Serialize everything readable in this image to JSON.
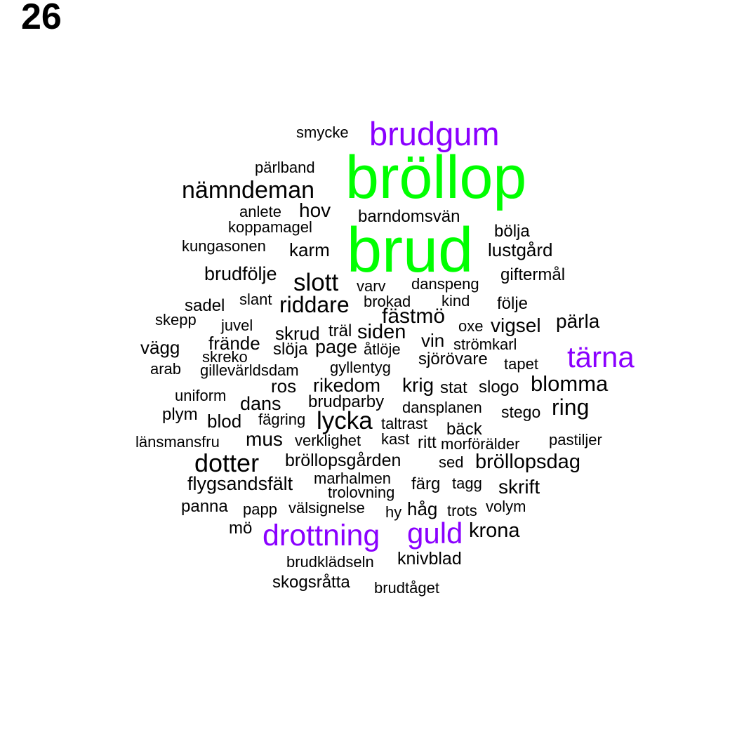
{
  "page_number": "26",
  "colors": {
    "primary": "#00ff00",
    "secondary": "#8a00ff",
    "default": "#000000"
  },
  "words": [
    {
      "text": "bröllop",
      "tier": "main"
    },
    {
      "text": "brud",
      "tier": "main"
    },
    {
      "text": "brudgum",
      "tier": "sub"
    },
    {
      "text": "tärna",
      "tier": "sub"
    },
    {
      "text": "drottning",
      "tier": "sub"
    },
    {
      "text": "guld",
      "tier": "sub"
    },
    {
      "text": "smycke"
    },
    {
      "text": "pärlband"
    },
    {
      "text": "nämndeman"
    },
    {
      "text": "anlete"
    },
    {
      "text": "hov"
    },
    {
      "text": "barndomsvän"
    },
    {
      "text": "koppamagel"
    },
    {
      "text": "bölja"
    },
    {
      "text": "kungasonen"
    },
    {
      "text": "karm"
    },
    {
      "text": "lustgård"
    },
    {
      "text": "brudfölje"
    },
    {
      "text": "giftermål"
    },
    {
      "text": "slott"
    },
    {
      "text": "varv"
    },
    {
      "text": "danspeng"
    },
    {
      "text": "slant"
    },
    {
      "text": "sadel"
    },
    {
      "text": "riddare"
    },
    {
      "text": "brokad"
    },
    {
      "text": "kind"
    },
    {
      "text": "följe"
    },
    {
      "text": "skepp"
    },
    {
      "text": "fästmö"
    },
    {
      "text": "juvel"
    },
    {
      "text": "oxe"
    },
    {
      "text": "vigsel"
    },
    {
      "text": "pärla"
    },
    {
      "text": "skrud"
    },
    {
      "text": "träl"
    },
    {
      "text": "siden"
    },
    {
      "text": "vägg"
    },
    {
      "text": "frände"
    },
    {
      "text": "vin"
    },
    {
      "text": "slöja"
    },
    {
      "text": "page"
    },
    {
      "text": "åtlöje"
    },
    {
      "text": "strömkarl"
    },
    {
      "text": "skreko"
    },
    {
      "text": "sjörövare"
    },
    {
      "text": "arab"
    },
    {
      "text": "gillevärldsdam"
    },
    {
      "text": "gyllentyg"
    },
    {
      "text": "tapet"
    },
    {
      "text": "ros"
    },
    {
      "text": "rikedom"
    },
    {
      "text": "krig"
    },
    {
      "text": "stat"
    },
    {
      "text": "slogo"
    },
    {
      "text": "blomma"
    },
    {
      "text": "uniform"
    },
    {
      "text": "dans"
    },
    {
      "text": "brudparby"
    },
    {
      "text": "dansplanen"
    },
    {
      "text": "stego"
    },
    {
      "text": "ring"
    },
    {
      "text": "plym"
    },
    {
      "text": "blod"
    },
    {
      "text": "fägring"
    },
    {
      "text": "lycka"
    },
    {
      "text": "taltrast"
    },
    {
      "text": "bäck"
    },
    {
      "text": "länsmansfru"
    },
    {
      "text": "mus"
    },
    {
      "text": "verklighet"
    },
    {
      "text": "kast"
    },
    {
      "text": "ritt"
    },
    {
      "text": "morförälder"
    },
    {
      "text": "pastiljer"
    },
    {
      "text": "dotter"
    },
    {
      "text": "bröllopsgården"
    },
    {
      "text": "sed"
    },
    {
      "text": "bröllopsdag"
    },
    {
      "text": "flygsandsfält"
    },
    {
      "text": "marhalmen"
    },
    {
      "text": "färg"
    },
    {
      "text": "tagg"
    },
    {
      "text": "skrift"
    },
    {
      "text": "trolovning"
    },
    {
      "text": "panna"
    },
    {
      "text": "papp"
    },
    {
      "text": "välsignelse"
    },
    {
      "text": "hy"
    },
    {
      "text": "håg"
    },
    {
      "text": "trots"
    },
    {
      "text": "volym"
    },
    {
      "text": "mö"
    },
    {
      "text": "krona"
    },
    {
      "text": "brudklädseln"
    },
    {
      "text": "knivblad"
    },
    {
      "text": "skogsråtta"
    },
    {
      "text": "brudtåget"
    }
  ]
}
